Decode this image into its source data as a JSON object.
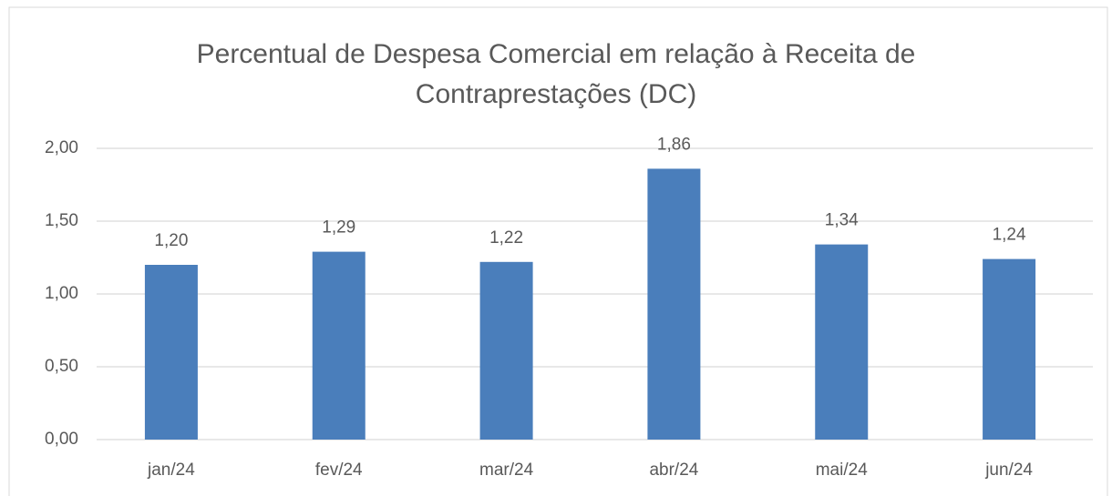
{
  "chart_data": {
    "type": "bar",
    "title": "Percentual de Despesa Comercial em relação à Receita de Contraprestações (DC)",
    "categories": [
      "jan/24",
      "fev/24",
      "mar/24",
      "abr/24",
      "mai/24",
      "jun/24"
    ],
    "values": [
      1.2,
      1.29,
      1.22,
      1.86,
      1.34,
      1.24
    ],
    "value_labels": [
      "1,20",
      "1,29",
      "1,22",
      "1,86",
      "1,34",
      "1,24"
    ],
    "color": "#4a7ebb",
    "ylim": [
      0,
      2
    ],
    "yticks": [
      {
        "value": 0,
        "label": "0,00"
      },
      {
        "value": 0.5,
        "label": "0,50"
      },
      {
        "value": 1,
        "label": "1,00"
      },
      {
        "value": 1.5,
        "label": "1,50"
      },
      {
        "value": 2,
        "label": "2,00"
      }
    ],
    "grid": true
  }
}
